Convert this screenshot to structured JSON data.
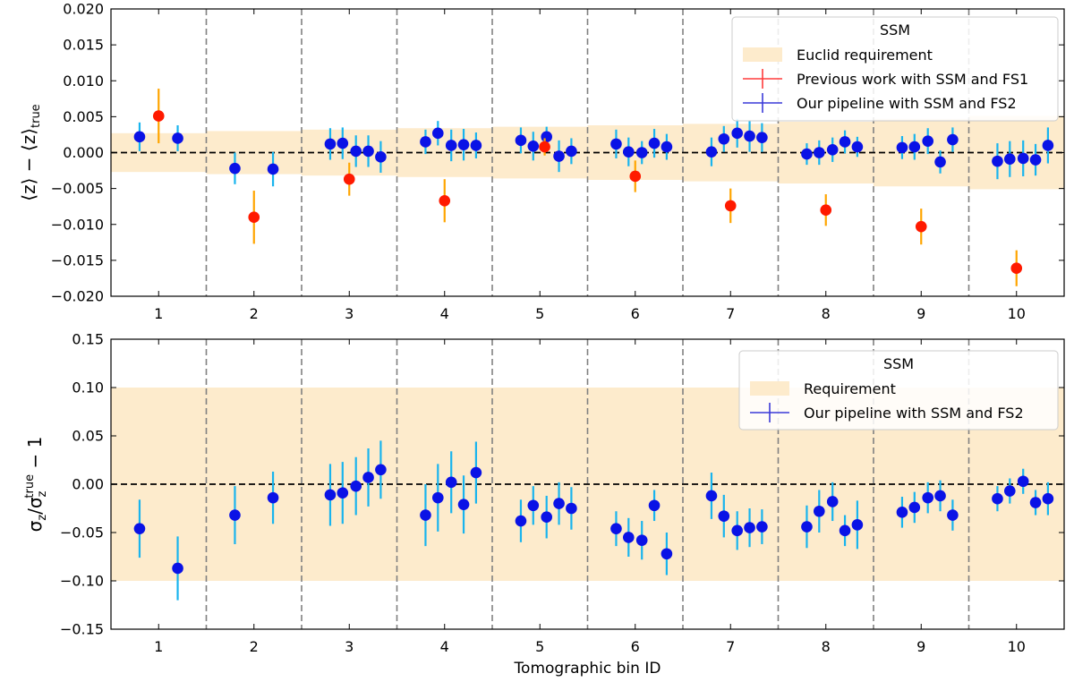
{
  "colors": {
    "band": "#fdebcc",
    "previous_marker": "#ff1a00",
    "previous_errbar": "#ffa500",
    "ours_marker": "#0a12e6",
    "ours_errbar": "#19b4ee",
    "legend_red_line": "#ff3b3b",
    "legend_blue_line": "#3a3ad8",
    "zero_line": "#000000",
    "bin_separator": "#808080"
  },
  "chart_data": [
    {
      "type": "scatter",
      "panel": "top",
      "ylabel": "⟨z⟩ − ⟨z⟩ₜᵣᵤₑ",
      "xlabel": "",
      "xlim": [
        0.5,
        10.5
      ],
      "ylim": [
        -0.02,
        0.02
      ],
      "yticks": [
        -0.02,
        -0.015,
        -0.01,
        -0.005,
        0.0,
        0.005,
        0.01,
        0.015,
        0.02
      ],
      "ytick_labels": [
        "−0.020",
        "−0.015",
        "−0.010",
        "−0.005",
        "0.000",
        "0.005",
        "0.010",
        "0.015",
        "0.020"
      ],
      "xticks": [
        1,
        2,
        3,
        4,
        5,
        6,
        7,
        8,
        9,
        10
      ],
      "xtick_labels": [
        "1",
        "2",
        "3",
        "4",
        "5",
        "6",
        "7",
        "8",
        "9",
        "10"
      ],
      "bin_separators": [
        1.5,
        2.5,
        3.5,
        4.5,
        5.5,
        6.5,
        7.5,
        8.5,
        9.5
      ],
      "zero_line": true,
      "grid": false,
      "legend": {
        "title": "SSM",
        "placement": "top-right",
        "entries": [
          "Euclid requirement",
          "Previous work with SSM and FS1",
          "Our pipeline with SSM and FS2"
        ]
      },
      "requirement_band": [
        {
          "bin": 1,
          "half_width": 0.0027
        },
        {
          "bin": 2,
          "half_width": 0.003
        },
        {
          "bin": 3,
          "half_width": 0.0032
        },
        {
          "bin": 4,
          "half_width": 0.0034
        },
        {
          "bin": 5,
          "half_width": 0.0036
        },
        {
          "bin": 6,
          "half_width": 0.0038
        },
        {
          "bin": 7,
          "half_width": 0.004
        },
        {
          "bin": 8,
          "half_width": 0.0043
        },
        {
          "bin": 9,
          "half_width": 0.0047
        },
        {
          "bin": 10,
          "half_width": 0.0051
        }
      ],
      "series": [
        {
          "name": "Previous work with SSM and FS1",
          "x": [
            1,
            2,
            3,
            4,
            5.05,
            6,
            7,
            8,
            9,
            10
          ],
          "y": [
            0.0051,
            -0.009,
            -0.0037,
            -0.0067,
            0.0008,
            -0.0033,
            -0.0074,
            -0.008,
            -0.0103,
            -0.0161
          ],
          "err": [
            0.0038,
            0.0037,
            0.0023,
            0.003,
            0.0012,
            0.0022,
            0.0024,
            0.0022,
            0.0025,
            0.0025
          ]
        },
        {
          "name": "Our pipeline with SSM and FS2",
          "x": [
            0.8,
            1.2,
            1.8,
            2.2,
            2.8,
            2.93,
            3.07,
            3.2,
            3.33,
            3.8,
            3.93,
            4.07,
            4.2,
            4.33,
            4.8,
            4.93,
            5.07,
            5.2,
            5.33,
            5.8,
            5.93,
            6.07,
            6.2,
            6.33,
            6.8,
            6.93,
            7.07,
            7.2,
            7.33,
            7.8,
            7.93,
            8.07,
            8.2,
            8.33,
            8.8,
            8.93,
            9.07,
            9.2,
            9.33,
            9.8,
            9.93,
            10.07,
            10.2,
            10.33
          ],
          "y": [
            0.0022,
            0.002,
            -0.0022,
            -0.0023,
            0.0012,
            0.0013,
            0.0002,
            0.0002,
            -0.0006,
            0.0015,
            0.0027,
            0.001,
            0.0011,
            0.001,
            0.0017,
            0.0009,
            0.0022,
            -0.0005,
            0.0002,
            0.0012,
            0.0001,
            0.0,
            0.0013,
            0.0008,
            0.0001,
            0.0019,
            0.0027,
            0.0023,
            0.0021,
            -0.0002,
            0.0,
            0.0004,
            0.0015,
            0.0008,
            0.0007,
            0.0008,
            0.0016,
            -0.0013,
            0.0018,
            -0.0012,
            -0.0009,
            -0.0008,
            -0.001,
            0.001
          ],
          "err": [
            0.002,
            0.0018,
            0.0022,
            0.0024,
            0.0022,
            0.0022,
            0.0022,
            0.0022,
            0.0022,
            0.0017,
            0.0017,
            0.0022,
            0.0022,
            0.0018,
            0.0018,
            0.002,
            0.0014,
            0.0022,
            0.0018,
            0.002,
            0.002,
            0.0016,
            0.002,
            0.0018,
            0.002,
            0.0018,
            0.002,
            0.0022,
            0.002,
            0.0015,
            0.0017,
            0.0017,
            0.0016,
            0.0014,
            0.0016,
            0.0018,
            0.0018,
            0.0016,
            0.0017,
            0.0025,
            0.0025,
            0.0025,
            0.0022,
            0.0025
          ]
        }
      ]
    },
    {
      "type": "scatter",
      "panel": "bottom",
      "ylabel": "σz/σztrue − 1",
      "xlabel": "Tomographic bin ID",
      "xlim": [
        0.5,
        10.5
      ],
      "ylim": [
        -0.15,
        0.15
      ],
      "yticks": [
        -0.15,
        -0.1,
        -0.05,
        0.0,
        0.05,
        0.1,
        0.15
      ],
      "ytick_labels": [
        "−0.15",
        "−0.10",
        "−0.05",
        "0.00",
        "0.05",
        "0.10",
        "0.15"
      ],
      "xticks": [
        1,
        2,
        3,
        4,
        5,
        6,
        7,
        8,
        9,
        10
      ],
      "xtick_labels": [
        "1",
        "2",
        "3",
        "4",
        "5",
        "6",
        "7",
        "8",
        "9",
        "10"
      ],
      "bin_separators": [
        1.5,
        2.5,
        3.5,
        4.5,
        5.5,
        6.5,
        7.5,
        8.5,
        9.5
      ],
      "zero_line": true,
      "grid": false,
      "legend": {
        "title": "SSM",
        "placement": "top-right",
        "entries": [
          "Requirement",
          "Our pipeline with SSM and FS2"
        ]
      },
      "requirement_band": [
        {
          "bin": "all",
          "half_width": 0.1
        }
      ],
      "series": [
        {
          "name": "Our pipeline with SSM and FS2",
          "x": [
            0.8,
            1.2,
            1.8,
            2.2,
            2.8,
            2.93,
            3.07,
            3.2,
            3.33,
            3.8,
            3.93,
            4.07,
            4.2,
            4.33,
            4.8,
            4.93,
            5.07,
            5.2,
            5.33,
            5.8,
            5.93,
            6.07,
            6.2,
            6.33,
            6.8,
            6.93,
            7.07,
            7.2,
            7.33,
            7.8,
            7.93,
            8.07,
            8.2,
            8.33,
            8.8,
            8.93,
            9.07,
            9.2,
            9.33,
            9.8,
            9.93,
            10.07,
            10.2,
            10.33
          ],
          "y": [
            -0.046,
            -0.087,
            -0.032,
            -0.014,
            -0.011,
            -0.009,
            -0.002,
            0.007,
            0.015,
            -0.032,
            -0.014,
            0.002,
            -0.021,
            0.012,
            -0.038,
            -0.022,
            -0.034,
            -0.02,
            -0.025,
            -0.046,
            -0.055,
            -0.058,
            -0.022,
            -0.072,
            -0.012,
            -0.033,
            -0.048,
            -0.045,
            -0.044,
            -0.044,
            -0.028,
            -0.018,
            -0.048,
            -0.042,
            -0.029,
            -0.024,
            -0.014,
            -0.012,
            -0.032,
            -0.015,
            -0.007,
            0.003,
            -0.019,
            -0.015
          ],
          "err": [
            0.03,
            0.033,
            0.03,
            0.027,
            0.032,
            0.032,
            0.03,
            0.03,
            0.03,
            0.032,
            0.035,
            0.032,
            0.03,
            0.032,
            0.022,
            0.02,
            0.022,
            0.022,
            0.022,
            0.018,
            0.02,
            0.02,
            0.016,
            0.022,
            0.024,
            0.022,
            0.02,
            0.02,
            0.018,
            0.022,
            0.022,
            0.02,
            0.016,
            0.025,
            0.016,
            0.016,
            0.016,
            0.016,
            0.016,
            0.013,
            0.013,
            0.013,
            0.013,
            0.017
          ]
        }
      ]
    }
  ]
}
